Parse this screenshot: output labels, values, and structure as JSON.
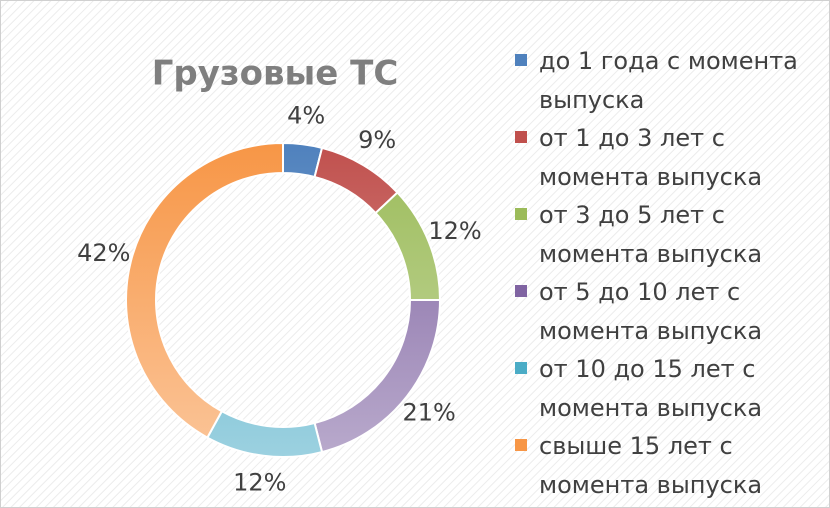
{
  "chart_data": {
    "type": "donut",
    "title": "Грузовые ТС",
    "categories": [
      "до 1 года с момента выпуска",
      "от 1 до 3 лет с момента выпуска",
      "от 3 до 5 лет с момента выпуска",
      "от 5 до 10 лет с момента выпуска",
      "от 10 до 15 лет с момента выпуска",
      "свыше 15 лет с момента выпуска"
    ],
    "values": [
      4,
      9,
      12,
      21,
      12,
      42
    ],
    "value_labels": [
      "4%",
      "9%",
      "12%",
      "21%",
      "12%",
      "42%"
    ],
    "colors": [
      "#4f81bd",
      "#c0504d",
      "#9bbb59",
      "#8064a2",
      "#4bacc6",
      "#f79646"
    ],
    "legend": "right"
  }
}
